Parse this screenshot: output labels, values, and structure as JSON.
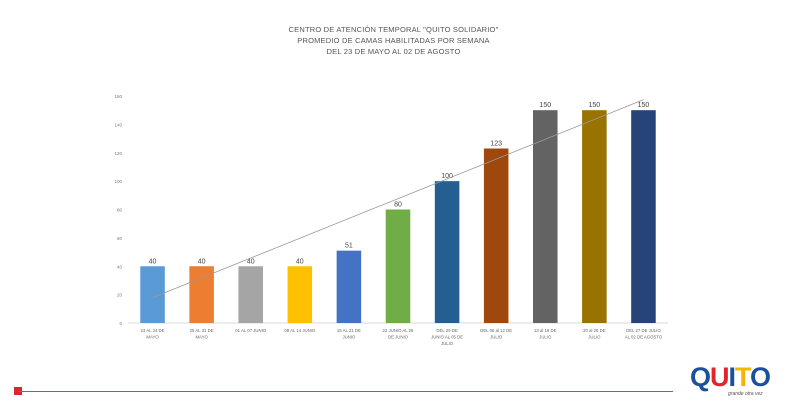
{
  "title_lines": [
    "CENTRO DE ATENCIÓN TEMPORAL \"QUITO SOLIDARIO\"",
    "PROMEDIO DE CAMAS HABILITADAS POR SEMANA",
    "DEL 23 DE MAYO AL 02 DE AGOSTO"
  ],
  "logo": {
    "text": "QUITO",
    "tagline": "grande otra vez"
  },
  "colors": {
    "accent_red": "#d42a2f",
    "logo_blue": "#1c4f9c",
    "logo_red": "#e0262b",
    "logo_yellow": "#f5b400"
  },
  "chart_data": {
    "type": "bar",
    "title": "CENTRO DE ATENCIÓN TEMPORAL \"QUITO SOLIDARIO\" / PROMEDIO DE CAMAS HABILITADAS POR SEMANA / DEL 23 DE MAYO AL 02 DE AGOSTO",
    "xlabel": "",
    "ylabel": "",
    "ylim": [
      0,
      160
    ],
    "yticks": [
      0,
      20,
      40,
      60,
      80,
      100,
      120,
      140,
      160
    ],
    "grid": false,
    "trendline": true,
    "categories": [
      [
        "23 AL 24 DE",
        "MAYO"
      ],
      [
        "25 AL 31 DE",
        "MAYO"
      ],
      [
        "01 AL 07 JUNIO"
      ],
      [
        "08 AL 14 JUNIO"
      ],
      [
        "15 AL 21 DE",
        "JUNIO"
      ],
      [
        "22 JUNIO AL 28",
        "DE JUNIO"
      ],
      [
        "DEL 29 DE",
        "JUNIO AL 05 DE",
        "JULIO"
      ],
      [
        "DEL 06 al 12 DE",
        "JULIO"
      ],
      [
        "13 al 19 DE",
        "JULIO"
      ],
      [
        "20 al 26 DE",
        "JULIO"
      ],
      [
        "DEL 27 DE JULIO",
        "AL 02 DE AGOSTO"
      ]
    ],
    "values": [
      40,
      40,
      40,
      40,
      51,
      80,
      100,
      123,
      150,
      150,
      150
    ],
    "bar_colors": [
      "#5b9bd5",
      "#ed7d31",
      "#a5a5a5",
      "#ffc000",
      "#4472c4",
      "#70ad47",
      "#255e91",
      "#9e480e",
      "#636363",
      "#997300",
      "#264478"
    ]
  }
}
